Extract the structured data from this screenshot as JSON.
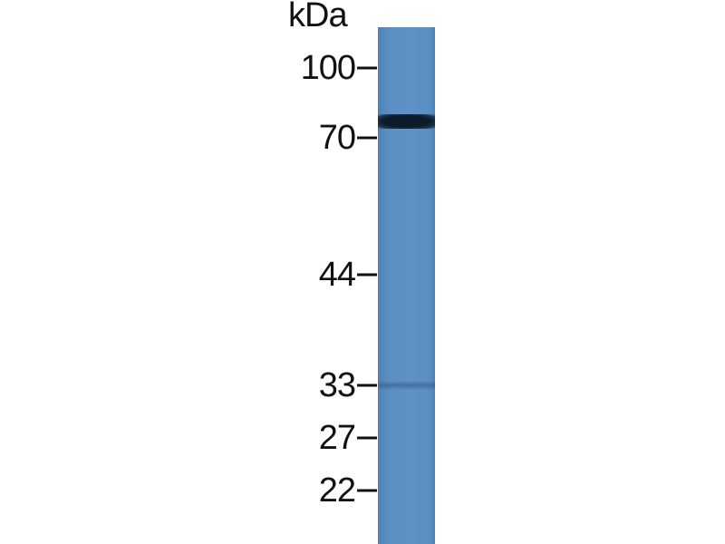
{
  "blot": {
    "unit_label": "kDa",
    "lane_color": "#5b8fc3",
    "markers": [
      {
        "label": "100",
        "kda": 100
      },
      {
        "label": "70",
        "kda": 70
      },
      {
        "label": "44",
        "kda": 44
      },
      {
        "label": "33",
        "kda": 33
      },
      {
        "label": "27",
        "kda": 27
      },
      {
        "label": "22",
        "kda": 22
      }
    ],
    "bands": [
      {
        "kda": 76,
        "intensity": "strong"
      },
      {
        "kda": 33,
        "intensity": "faint"
      }
    ]
  }
}
